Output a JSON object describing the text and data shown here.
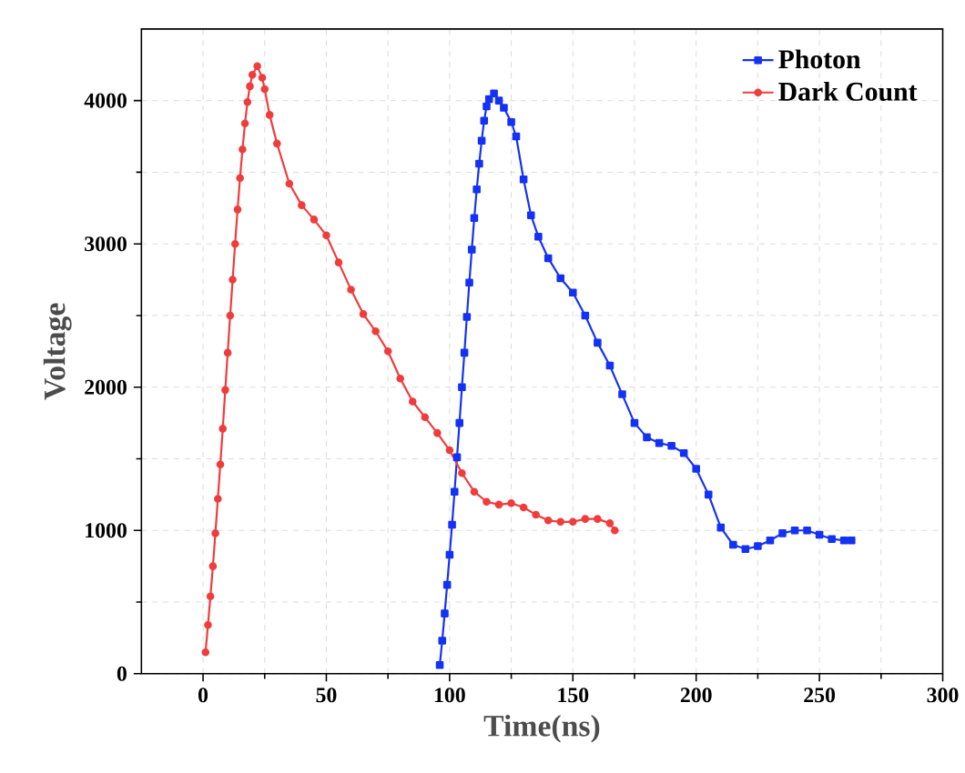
{
  "chart_data": {
    "type": "line",
    "xlabel": "Time(ns)",
    "ylabel": "Voltage",
    "xlim": [
      -25,
      300
    ],
    "ylim": [
      0,
      4500
    ],
    "xticks": [
      0,
      50,
      100,
      150,
      200,
      250,
      300
    ],
    "yticks": [
      0,
      1000,
      2000,
      3000,
      4000
    ],
    "grid": true,
    "legend": "top right",
    "line_style": "solid",
    "series": [
      {
        "name": "Photon",
        "color": "#1432f5",
        "marker": "square",
        "x": [
          96,
          97,
          98,
          99,
          100,
          101,
          102,
          103,
          104,
          105,
          106,
          107,
          108,
          109,
          110,
          111,
          112,
          113,
          114,
          115,
          116,
          118,
          120,
          122,
          125,
          127,
          130,
          133,
          136,
          140,
          145,
          150,
          155,
          160,
          165,
          170,
          175,
          180,
          185,
          190,
          195,
          200,
          205,
          210,
          215,
          220,
          225,
          230,
          235,
          240,
          245,
          250,
          255,
          260,
          263
        ],
        "values": [
          60,
          230,
          420,
          620,
          830,
          1040,
          1270,
          1510,
          1750,
          2000,
          2240,
          2490,
          2730,
          2960,
          3180,
          3380,
          3560,
          3720,
          3860,
          3960,
          4010,
          4050,
          4000,
          3950,
          3850,
          3750,
          3450,
          3200,
          3050,
          2900,
          2760,
          2660,
          2500,
          2310,
          2150,
          1950,
          1750,
          1650,
          1610,
          1590,
          1540,
          1430,
          1250,
          1020,
          900,
          870,
          890,
          930,
          980,
          1000,
          1000,
          970,
          940,
          930,
          930
        ]
      },
      {
        "name": "Dark Count",
        "color": "#f03c3c",
        "marker": "circle",
        "x": [
          1,
          2,
          3,
          4,
          5,
          6,
          7,
          8,
          9,
          10,
          11,
          12,
          13,
          14,
          15,
          16,
          17,
          18,
          19,
          20,
          22,
          24,
          25,
          27,
          30,
          35,
          40,
          45,
          50,
          55,
          60,
          65,
          70,
          75,
          80,
          85,
          90,
          95,
          100,
          105,
          110,
          115,
          120,
          125,
          130,
          135,
          140,
          145,
          150,
          155,
          160,
          165,
          167
        ],
        "values": [
          150,
          340,
          540,
          750,
          980,
          1220,
          1460,
          1710,
          1980,
          2240,
          2500,
          2750,
          3000,
          3240,
          3460,
          3660,
          3840,
          3990,
          4100,
          4180,
          4240,
          4160,
          4080,
          3900,
          3700,
          3420,
          3270,
          3170,
          3060,
          2870,
          2680,
          2510,
          2390,
          2250,
          2060,
          1900,
          1790,
          1680,
          1560,
          1400,
          1270,
          1200,
          1180,
          1190,
          1160,
          1110,
          1070,
          1060,
          1060,
          1080,
          1080,
          1050,
          1000
        ]
      }
    ]
  }
}
